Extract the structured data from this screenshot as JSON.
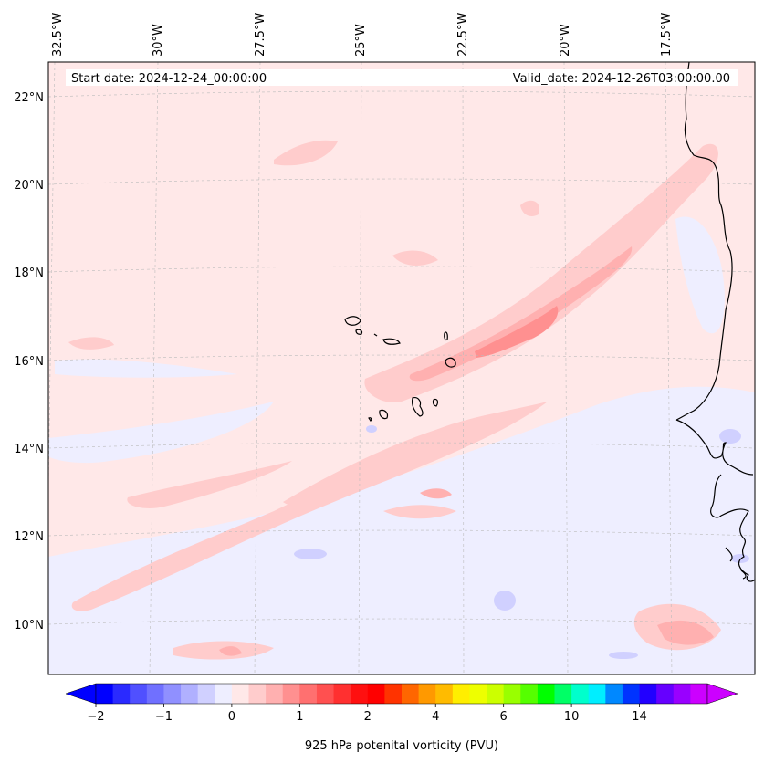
{
  "map": {
    "start_date": "Start date: 2024-12-24_00:00:00",
    "valid_date": "Valid_date: 2024-12-26T03:00:00.00",
    "lon_labels": [
      "32.5°W",
      "30°W",
      "27.5°W",
      "25°W",
      "22.5°W",
      "20°W",
      "17.5°W"
    ],
    "lat_labels": [
      "22°N",
      "20°N",
      "18°N",
      "16°N",
      "14°N",
      "12°N",
      "10°N"
    ],
    "field": "925 hPa potential vorticity",
    "colors": {
      "background_field": "#ffe8e8",
      "coast": "#000000",
      "grid": "#bbbbbb"
    }
  },
  "colorbar": {
    "label": "925 hPa potenital vorticity (PVU)",
    "tick_labels": [
      "−2",
      "−1",
      "0",
      "1",
      "2",
      "4",
      "6",
      "10",
      "14"
    ],
    "colors": [
      "#0000ff",
      "#2a2aff",
      "#5050ff",
      "#7070ff",
      "#9090ff",
      "#b0b0ff",
      "#d0d0ff",
      "#eeeeff",
      "#ffe8e8",
      "#ffcccc",
      "#ffb0b0",
      "#ff9090",
      "#ff7070",
      "#ff5050",
      "#ff3030",
      "#ff1010",
      "#ff0000",
      "#ff3300",
      "#ff6600",
      "#ff9900",
      "#ffbb00",
      "#ffee00",
      "#eeff00",
      "#ccff00",
      "#99ff00",
      "#55ff00",
      "#00ff00",
      "#00ff66",
      "#00ffcc",
      "#00eeff",
      "#0088ff",
      "#0033ff",
      "#2200ff",
      "#6600ff",
      "#9900ff",
      "#cc00ff"
    ],
    "extend_left_color": "#0000ff",
    "extend_right_color": "#cc00ff"
  }
}
